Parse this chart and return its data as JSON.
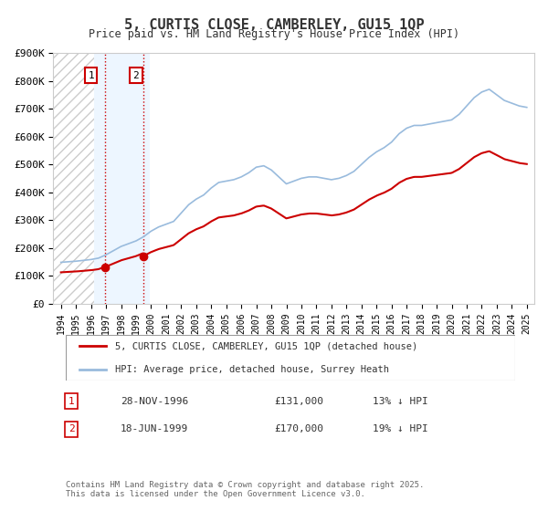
{
  "title": "5, CURTIS CLOSE, CAMBERLEY, GU15 1QP",
  "subtitle": "Price paid vs. HM Land Registry's House Price Index (HPI)",
  "ylabel": "",
  "ylim": [
    0,
    900000
  ],
  "yticks": [
    0,
    100000,
    200000,
    300000,
    400000,
    500000,
    600000,
    700000,
    800000,
    900000
  ],
  "ytick_labels": [
    "£0",
    "£100K",
    "£200K",
    "£300K",
    "£400K",
    "£500K",
    "£600K",
    "£700K",
    "£800K",
    "£900K"
  ],
  "background_color": "#ffffff",
  "plot_bg_color": "#f0f0f0",
  "hatch_color": "#d0d0d0",
  "grid_color": "#ffffff",
  "line1_color": "#cc0000",
  "line2_color": "#99bbdd",
  "marker1_x": "1996-11-28",
  "marker1_y": 131000,
  "marker1_label": "1",
  "marker1_date": "28-NOV-1996",
  "marker1_price": "£131,000",
  "marker1_hpi": "13% ↓ HPI",
  "marker2_x": "1999-06-18",
  "marker2_y": 170000,
  "marker2_label": "2",
  "marker2_date": "18-JUN-1999",
  "marker2_price": "£170,000",
  "marker2_hpi": "19% ↓ HPI",
  "legend_line1": "5, CURTIS CLOSE, CAMBERLEY, GU15 1QP (detached house)",
  "legend_line2": "HPI: Average price, detached house, Surrey Heath",
  "footnote": "Contains HM Land Registry data © Crown copyright and database right 2025.\nThis data is licensed under the Open Government Licence v3.0.",
  "xmin": 1993.5,
  "xmax": 2025.5,
  "hatch_xmin": 1993.5,
  "hatch_xmax": 1996.2
}
